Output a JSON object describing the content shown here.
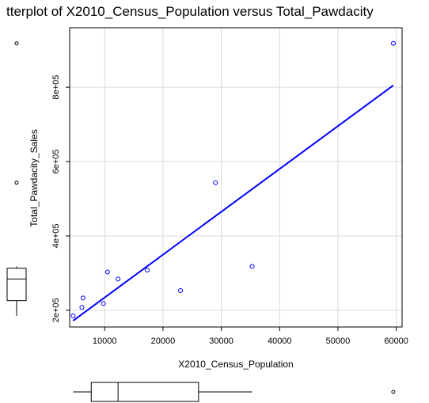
{
  "chart_data": {
    "type": "scatter",
    "title": "tterplot of X2010_Census_Population versus Total_Pawdacity",
    "xlabel": "X2010_Census_Population",
    "ylabel": "Total_Pawdacity_Sales",
    "xlim": [
      4000,
      61000
    ],
    "ylim": [
      155000,
      960000
    ],
    "x_ticks": [
      10000,
      20000,
      30000,
      40000,
      50000,
      60000
    ],
    "x_tick_labels": [
      "10000",
      "20000",
      "30000",
      "40000",
      "50000",
      "60000"
    ],
    "y_ticks": [
      200000,
      400000,
      600000,
      800000
    ],
    "y_tick_labels": [
      "2e+05",
      "4e+05",
      "6e+05",
      "8e+05"
    ],
    "grid": true,
    "series": [
      {
        "marker": "open-circle",
        "color": "#0000ff",
        "points": [
          {
            "x": 4600,
            "y": 185000
          },
          {
            "x": 6100,
            "y": 208000
          },
          {
            "x": 6300,
            "y": 233000
          },
          {
            "x": 9800,
            "y": 218000
          },
          {
            "x": 10500,
            "y": 303000
          },
          {
            "x": 12300,
            "y": 284000
          },
          {
            "x": 17300,
            "y": 308000
          },
          {
            "x": 23000,
            "y": 253000
          },
          {
            "x": 29000,
            "y": 543000
          },
          {
            "x": 35300,
            "y": 318000
          },
          {
            "x": 59500,
            "y": 918000
          }
        ]
      }
    ],
    "regression_line": {
      "color": "#0000ff",
      "x": [
        4600,
        59500
      ],
      "y": [
        172000,
        805000
      ]
    },
    "x_boxplot": {
      "min": 4600,
      "q1": 7700,
      "median": 12300,
      "q3": 26100,
      "max": 35300,
      "outliers": [
        59500
      ]
    },
    "y_boxplot": {
      "min": 185000,
      "q1": 226000,
      "median": 284000,
      "q3": 313000,
      "max": 318000,
      "outliers": [
        543000,
        918000
      ]
    }
  }
}
